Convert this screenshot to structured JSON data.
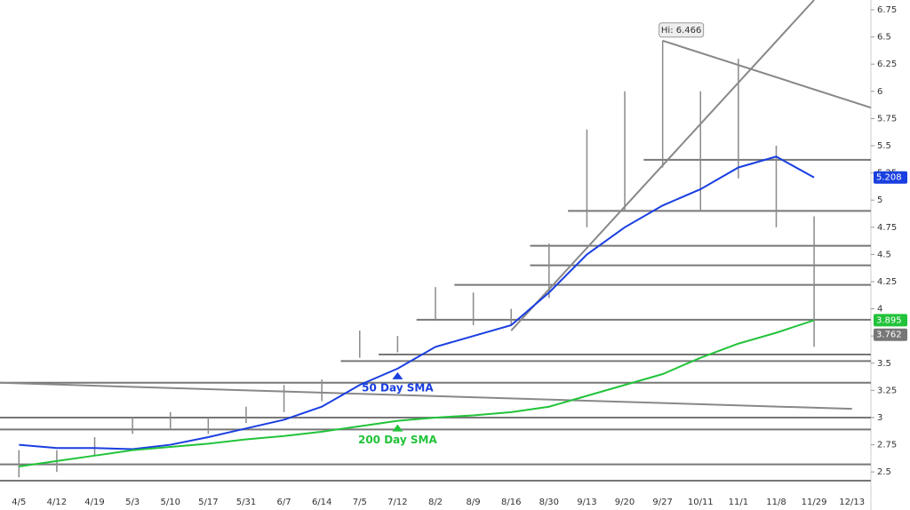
{
  "chart_data": {
    "type": "ohlc",
    "categories": [
      "4/5",
      "4/12",
      "4/19",
      "5/3",
      "5/10",
      "5/17",
      "5/31",
      "6/7",
      "6/14",
      "7/5",
      "7/12",
      "8/2",
      "8/9",
      "8/16",
      "8/30",
      "9/13",
      "9/20",
      "9/27",
      "10/11",
      "11/1",
      "11/8",
      "11/29",
      "12/13"
    ],
    "bars": {
      "color": "#8a8a8a",
      "high": [
        2.7,
        2.7,
        2.82,
        3.0,
        3.05,
        3.0,
        3.1,
        3.3,
        3.35,
        3.8,
        3.75,
        4.2,
        4.15,
        4.0,
        4.6,
        5.65,
        6.0,
        6.466,
        6.0,
        6.3,
        5.5,
        4.85,
        null
      ],
      "low": [
        2.45,
        2.5,
        2.65,
        2.85,
        2.9,
        2.85,
        2.95,
        3.05,
        3.15,
        3.55,
        3.6,
        3.9,
        3.85,
        3.85,
        4.1,
        4.75,
        4.9,
        5.3,
        4.9,
        5.2,
        4.75,
        3.65,
        null
      ]
    },
    "series": [
      {
        "name": "50 Day SMA",
        "color": "#1a3fe0",
        "values": [
          2.75,
          2.72,
          2.72,
          2.71,
          2.75,
          2.82,
          2.9,
          2.98,
          3.1,
          3.3,
          3.45,
          3.65,
          3.75,
          3.85,
          4.15,
          4.5,
          4.75,
          4.95,
          5.1,
          5.3,
          5.4,
          5.208,
          null
        ]
      },
      {
        "name": "200 Day SMA",
        "color": "#22c33a",
        "values": [
          2.55,
          2.6,
          2.65,
          2.7,
          2.73,
          2.76,
          2.8,
          2.83,
          2.87,
          2.92,
          2.97,
          3.0,
          3.02,
          3.05,
          3.1,
          3.2,
          3.3,
          3.4,
          3.55,
          3.68,
          3.78,
          3.895,
          null
        ]
      }
    ],
    "last_price": 3.762,
    "hi_label": "Hi: 6.466",
    "levels": [
      {
        "value": 2.42,
        "from": "4/5"
      },
      {
        "value": 2.57,
        "from": "4/5"
      },
      {
        "value": 2.89,
        "from": "4/5"
      },
      {
        "value": 3.0,
        "from": "4/5"
      },
      {
        "value": 3.32,
        "from": "4/5"
      },
      {
        "value": 3.52,
        "from": "7/5"
      },
      {
        "value": 3.58,
        "from": "7/12"
      },
      {
        "value": 3.9,
        "from": "8/2"
      },
      {
        "value": 4.22,
        "from": "8/9"
      },
      {
        "value": 4.4,
        "from": "8/30"
      },
      {
        "value": 4.58,
        "from": "8/30"
      },
      {
        "value": 4.9,
        "from": "9/13"
      },
      {
        "value": 5.37,
        "from": "9/27"
      }
    ],
    "trendlines": [
      {
        "from": [
          "4/5",
          3.32
        ],
        "to": [
          "12/13",
          3.08
        ]
      },
      {
        "from": [
          "9/27",
          6.466
        ],
        "to": [
          "12/13",
          5.85
        ]
      },
      {
        "from": [
          "8/16",
          3.8
        ],
        "to": [
          "11/29",
          6.84
        ]
      }
    ],
    "ylim": [
      2.15,
      6.84
    ],
    "yticks": [
      2.5,
      2.75,
      3,
      3.25,
      3.5,
      3.75,
      4,
      4.25,
      4.5,
      4.75,
      5,
      5.25,
      5.5,
      5.75,
      6,
      6.25,
      6.5,
      6.75
    ]
  }
}
